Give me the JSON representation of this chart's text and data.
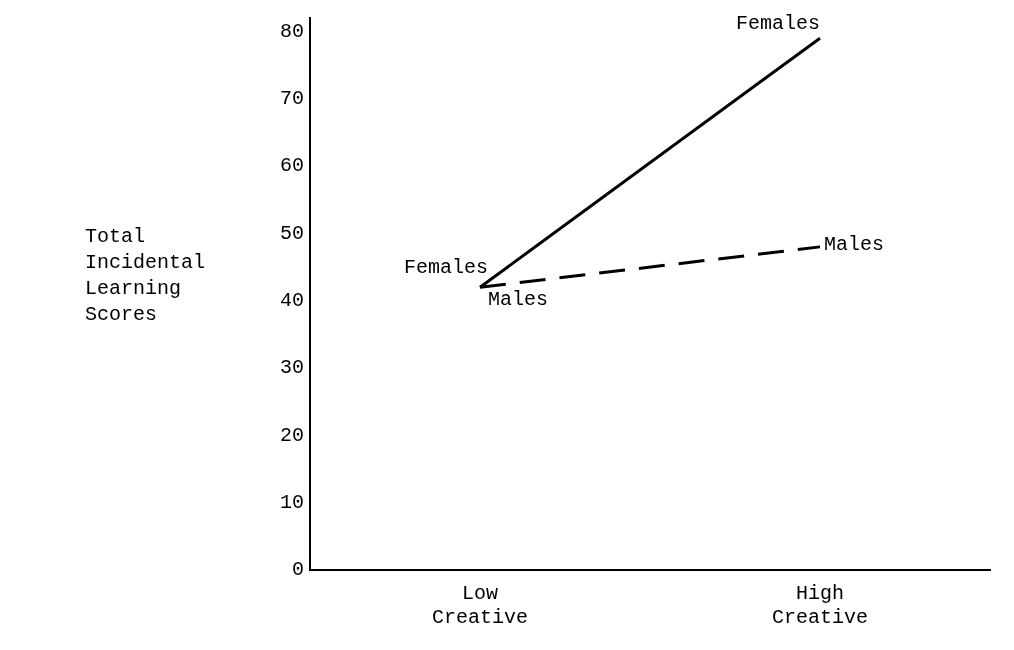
{
  "chart_data": {
    "type": "line",
    "ylabel": "Total Incidental Learning Scores",
    "categories": [
      "Low Creative",
      "High Creative"
    ],
    "ylim": [
      0,
      82
    ],
    "yticks": [
      0,
      10,
      20,
      30,
      40,
      50,
      60,
      70,
      80
    ],
    "grid": false,
    "legend": false,
    "marker": "none",
    "series": [
      {
        "name": "Females",
        "color": "#000000",
        "values": [
          42,
          79
        ],
        "line_style": "solid"
      },
      {
        "name": "Males",
        "color": "#000000",
        "values": [
          42,
          48
        ],
        "line_style": "dashed"
      }
    ]
  }
}
